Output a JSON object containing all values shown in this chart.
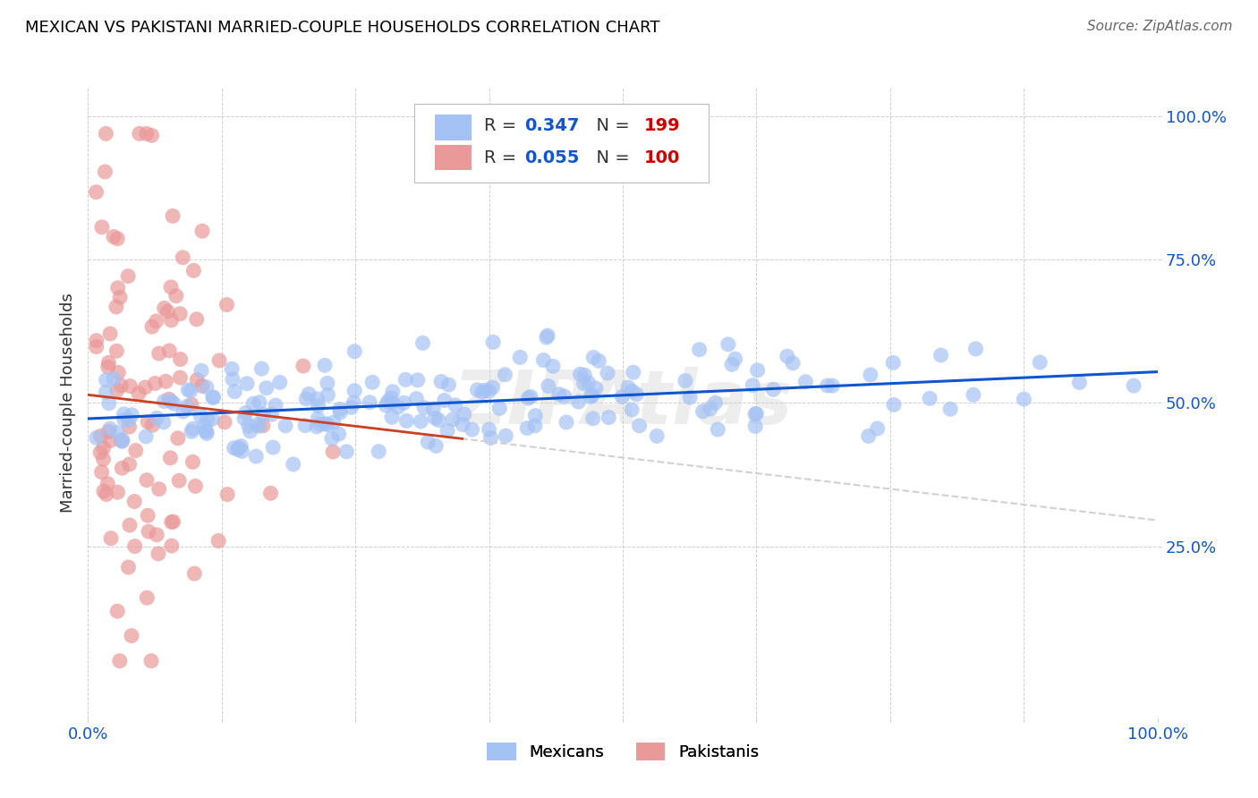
{
  "title": "MEXICAN VS PAKISTANI MARRIED-COUPLE HOUSEHOLDS CORRELATION CHART",
  "source": "Source: ZipAtlas.com",
  "ylabel": "Married-couple Households",
  "watermark": "ZIPAtlas",
  "mexican_R": 0.347,
  "mexican_N": 199,
  "pakistani_R": 0.055,
  "pakistani_N": 100,
  "xlim": [
    0.0,
    1.0
  ],
  "ylim": [
    -0.05,
    1.05
  ],
  "yticks": [
    0.25,
    0.5,
    0.75,
    1.0
  ],
  "ytick_labels": [
    "25.0%",
    "50.0%",
    "75.0%",
    "100.0%"
  ],
  "xticks": [
    0.0,
    0.125,
    0.25,
    0.375,
    0.5,
    0.625,
    0.75,
    0.875,
    1.0
  ],
  "xtick_labels": [
    "0.0%",
    "",
    "",
    "",
    "",
    "",
    "",
    "",
    "100.0%"
  ],
  "blue_color": "#a4c2f4",
  "pink_color": "#ea9999",
  "blue_line_color": "#1155cc",
  "pink_line_color": "#cc4125",
  "grid_color": "#b0b0b0",
  "watermark_color": "#cccccc",
  "title_color": "#000000",
  "tick_color": "#1155cc",
  "background_color": "#ffffff",
  "seed": 42
}
